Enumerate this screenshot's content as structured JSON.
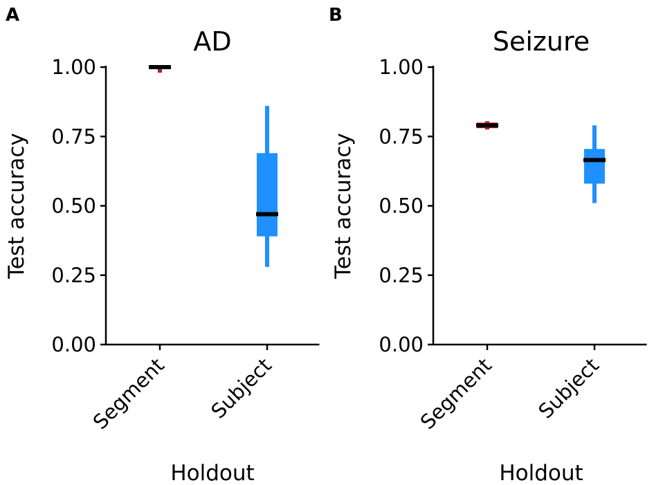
{
  "chart_data": [
    {
      "panel_label": "A",
      "type": "boxplot",
      "title": "AD",
      "xlabel": "Holdout",
      "ylabel": "Test accuracy",
      "ylim": [
        0,
        1
      ],
      "yticks": [
        "0.00",
        "0.25",
        "0.50",
        "0.75",
        "1.00"
      ],
      "ytick_values": [
        0,
        0.25,
        0.5,
        0.75,
        1.0
      ],
      "categories": [
        "Segment",
        "Subject"
      ],
      "boxes": [
        {
          "category": "Segment",
          "whisker_low": 0.98,
          "q1": 0.995,
          "median": 1.0,
          "q3": 1.0,
          "whisker_high": 1.0,
          "color": "#b22222"
        },
        {
          "category": "Subject",
          "whisker_low": 0.28,
          "q1": 0.39,
          "median": 0.47,
          "q3": 0.69,
          "whisker_high": 0.86,
          "color": "#1e90ff"
        }
      ],
      "grid": false
    },
    {
      "panel_label": "B",
      "type": "boxplot",
      "title": "Seizure",
      "xlabel": "Holdout",
      "ylabel": "Test accuracy",
      "ylim": [
        0,
        1
      ],
      "yticks": [
        "0.00",
        "0.25",
        "0.50",
        "0.75",
        "1.00"
      ],
      "ytick_values": [
        0,
        0.25,
        0.5,
        0.75,
        1.0
      ],
      "categories": [
        "Segment",
        "Subject"
      ],
      "boxes": [
        {
          "category": "Segment",
          "whisker_low": 0.775,
          "q1": 0.78,
          "median": 0.79,
          "q3": 0.8,
          "whisker_high": 0.805,
          "color": "#b22222"
        },
        {
          "category": "Subject",
          "whisker_low": 0.51,
          "q1": 0.58,
          "median": 0.665,
          "q3": 0.705,
          "whisker_high": 0.79,
          "color": "#1e90ff"
        }
      ],
      "grid": false
    }
  ]
}
